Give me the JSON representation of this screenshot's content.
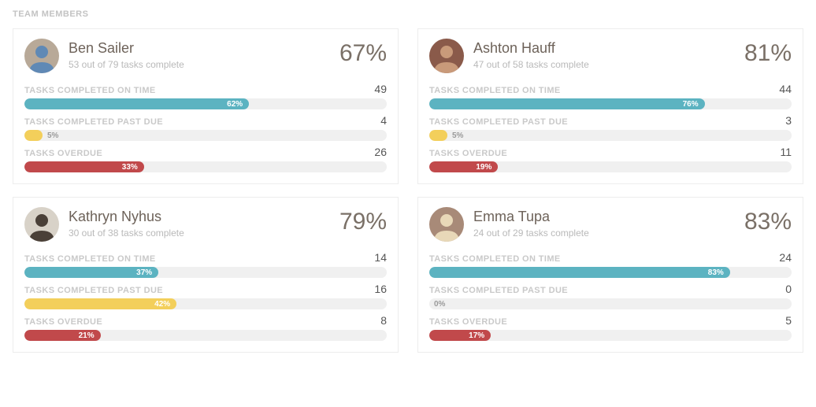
{
  "section_title": "TEAM MEMBERS",
  "colors": {
    "on_time": "#5cb3c1",
    "past_due": "#f3cf5b",
    "overdue": "#c1494b",
    "track": "#f0f0f0"
  },
  "labels": {
    "on_time": "TASKS COMPLETED ON TIME",
    "past_due": "TASKS COMPLETED PAST DUE",
    "overdue": "TASKS OVERDUE"
  },
  "members": [
    {
      "name": "Ben Sailer",
      "subtitle": "53 out of 79 tasks complete",
      "percent": "67%",
      "avatar_bg": "#b8a998",
      "avatar_accent": "#6089b5",
      "metrics": [
        {
          "key": "on_time",
          "value": 49,
          "pct": 62,
          "pct_label": "62%"
        },
        {
          "key": "past_due",
          "value": 4,
          "pct": 5,
          "pct_label": "5%"
        },
        {
          "key": "overdue",
          "value": 26,
          "pct": 33,
          "pct_label": "33%"
        }
      ]
    },
    {
      "name": "Ashton Hauff",
      "subtitle": "47 out of 58 tasks complete",
      "percent": "81%",
      "avatar_bg": "#8a5a4a",
      "avatar_accent": "#c99a7a",
      "metrics": [
        {
          "key": "on_time",
          "value": 44,
          "pct": 76,
          "pct_label": "76%"
        },
        {
          "key": "past_due",
          "value": 3,
          "pct": 5,
          "pct_label": "5%"
        },
        {
          "key": "overdue",
          "value": 11,
          "pct": 19,
          "pct_label": "19%"
        }
      ]
    },
    {
      "name": "Kathryn Nyhus",
      "subtitle": "30 out of 38 tasks complete",
      "percent": "79%",
      "avatar_bg": "#d8d2c8",
      "avatar_accent": "#4a4038",
      "metrics": [
        {
          "key": "on_time",
          "value": 14,
          "pct": 37,
          "pct_label": "37%"
        },
        {
          "key": "past_due",
          "value": 16,
          "pct": 42,
          "pct_label": "42%"
        },
        {
          "key": "overdue",
          "value": 8,
          "pct": 21,
          "pct_label": "21%"
        }
      ]
    },
    {
      "name": "Emma Tupa",
      "subtitle": "24 out of 29 tasks complete",
      "percent": "83%",
      "avatar_bg": "#a88a78",
      "avatar_accent": "#e8d8b8",
      "metrics": [
        {
          "key": "on_time",
          "value": 24,
          "pct": 83,
          "pct_label": "83%"
        },
        {
          "key": "past_due",
          "value": 0,
          "pct": 0,
          "pct_label": "0%"
        },
        {
          "key": "overdue",
          "value": 5,
          "pct": 17,
          "pct_label": "17%"
        }
      ]
    }
  ]
}
